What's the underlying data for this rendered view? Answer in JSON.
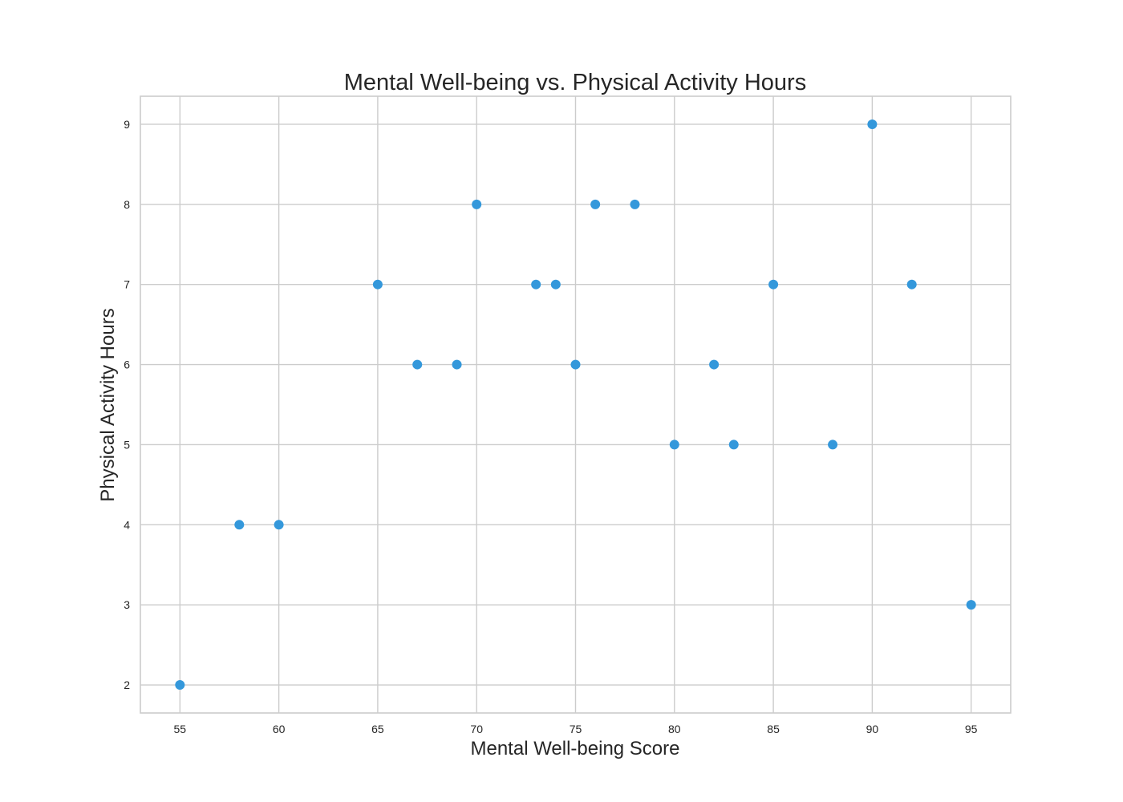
{
  "chart_data": {
    "type": "scatter",
    "title": "Mental Well-being vs. Physical Activity Hours",
    "xlabel": "Mental Well-being Score",
    "ylabel": "Physical Activity Hours",
    "xlim": [
      53,
      97
    ],
    "ylim": [
      1.65,
      9.35
    ],
    "xticks": [
      55,
      60,
      65,
      70,
      75,
      80,
      85,
      90,
      95
    ],
    "yticks": [
      2,
      3,
      4,
      5,
      6,
      7,
      8,
      9
    ],
    "grid": true,
    "colors": {
      "point": "#3498db",
      "grid": "#cccccc",
      "frame": "#cccccc",
      "text": "#262626"
    },
    "points": [
      {
        "x": 55,
        "y": 2
      },
      {
        "x": 58,
        "y": 4
      },
      {
        "x": 60,
        "y": 4
      },
      {
        "x": 65,
        "y": 7
      },
      {
        "x": 67,
        "y": 6
      },
      {
        "x": 69,
        "y": 6
      },
      {
        "x": 70,
        "y": 8
      },
      {
        "x": 73,
        "y": 7
      },
      {
        "x": 74,
        "y": 7
      },
      {
        "x": 75,
        "y": 6
      },
      {
        "x": 76,
        "y": 8
      },
      {
        "x": 78,
        "y": 8
      },
      {
        "x": 80,
        "y": 5
      },
      {
        "x": 82,
        "y": 6
      },
      {
        "x": 83,
        "y": 5
      },
      {
        "x": 85,
        "y": 7
      },
      {
        "x": 88,
        "y": 5
      },
      {
        "x": 90,
        "y": 9
      },
      {
        "x": 92,
        "y": 7
      },
      {
        "x": 95,
        "y": 3
      }
    ]
  }
}
